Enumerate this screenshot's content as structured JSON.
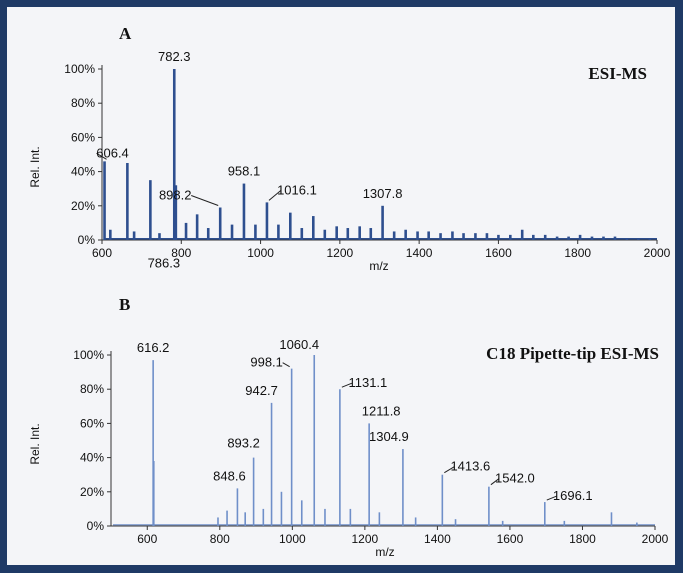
{
  "chart_data": [
    {
      "panel": "A",
      "type": "line",
      "label": "ESI-MS",
      "xlabel": "m/z",
      "ylabel": "Rel. Int.",
      "xlim": [
        600,
        2000
      ],
      "ylim": [
        0,
        100
      ],
      "xticks": [
        "600",
        "800",
        "1000",
        "1200",
        "1400",
        "1600",
        "1800",
        "2000"
      ],
      "yticks": [
        "0%",
        "20%",
        "40%",
        "60%",
        "80%",
        "100%"
      ],
      "color": "#2e4f8f",
      "peaks": [
        {
          "mz": 606.4,
          "int": 46
        },
        {
          "mz": 621,
          "int": 6
        },
        {
          "mz": 664,
          "int": 45
        },
        {
          "mz": 681,
          "int": 5
        },
        {
          "mz": 722,
          "int": 35
        },
        {
          "mz": 745,
          "int": 4
        },
        {
          "mz": 782.3,
          "int": 100
        },
        {
          "mz": 786.3,
          "int": 32
        },
        {
          "mz": 812,
          "int": 10
        },
        {
          "mz": 840,
          "int": 15
        },
        {
          "mz": 868,
          "int": 7
        },
        {
          "mz": 898.2,
          "int": 19
        },
        {
          "mz": 928,
          "int": 9
        },
        {
          "mz": 958.1,
          "int": 33
        },
        {
          "mz": 987,
          "int": 9
        },
        {
          "mz": 1016.1,
          "int": 22
        },
        {
          "mz": 1045,
          "int": 9
        },
        {
          "mz": 1075,
          "int": 16
        },
        {
          "mz": 1104,
          "int": 7
        },
        {
          "mz": 1133,
          "int": 14
        },
        {
          "mz": 1162,
          "int": 6
        },
        {
          "mz": 1192,
          "int": 8
        },
        {
          "mz": 1220,
          "int": 7
        },
        {
          "mz": 1250,
          "int": 8
        },
        {
          "mz": 1278,
          "int": 7
        },
        {
          "mz": 1307.8,
          "int": 20
        },
        {
          "mz": 1337,
          "int": 5
        },
        {
          "mz": 1366,
          "int": 6
        },
        {
          "mz": 1396,
          "int": 5
        },
        {
          "mz": 1424,
          "int": 5
        },
        {
          "mz": 1454,
          "int": 4
        },
        {
          "mz": 1484,
          "int": 5
        },
        {
          "mz": 1512,
          "int": 4
        },
        {
          "mz": 1542,
          "int": 4
        },
        {
          "mz": 1571,
          "int": 4
        },
        {
          "mz": 1600,
          "int": 3
        },
        {
          "mz": 1630,
          "int": 3
        },
        {
          "mz": 1660,
          "int": 6
        },
        {
          "mz": 1688,
          "int": 3
        },
        {
          "mz": 1718,
          "int": 3
        },
        {
          "mz": 1748,
          "int": 2
        },
        {
          "mz": 1777,
          "int": 2
        },
        {
          "mz": 1806,
          "int": 3
        },
        {
          "mz": 1836,
          "int": 2
        },
        {
          "mz": 1865,
          "int": 2
        },
        {
          "mz": 1894,
          "int": 2
        },
        {
          "mz": 1924,
          "int": 1
        },
        {
          "mz": 1953,
          "int": 1
        },
        {
          "mz": 1982,
          "int": 1
        }
      ],
      "annotations": [
        {
          "text": "606.4",
          "mz": 606.4,
          "int": 46
        },
        {
          "text": "782.3",
          "mz": 782.3,
          "int": 100
        },
        {
          "text": "786.3",
          "mz": 786.3,
          "int": 32
        },
        {
          "text": "898.2",
          "mz": 898.2,
          "int": 19
        },
        {
          "text": "958.1",
          "mz": 958.1,
          "int": 33
        },
        {
          "text": "1016.1",
          "mz": 1016.1,
          "int": 22
        },
        {
          "text": "1307.8",
          "mz": 1307.8,
          "int": 20
        }
      ]
    },
    {
      "panel": "B",
      "type": "line",
      "label": "C18 Pipette-tip ESI-MS",
      "xlabel": "m/z",
      "ylabel": "Rel. Int.",
      "xlim": [
        500,
        2000
      ],
      "ylim": [
        0,
        100
      ],
      "xticks": [
        "600",
        "800",
        "1000",
        "1200",
        "1400",
        "1600",
        "1800",
        "2000"
      ],
      "yticks": [
        "0%",
        "20%",
        "40%",
        "60%",
        "80%",
        "100%"
      ],
      "color": "#6f8fc9",
      "peaks": [
        {
          "mz": 616.2,
          "int": 97
        },
        {
          "mz": 618,
          "int": 38
        },
        {
          "mz": 795,
          "int": 5
        },
        {
          "mz": 820,
          "int": 9
        },
        {
          "mz": 848.6,
          "int": 22
        },
        {
          "mz": 870,
          "int": 8
        },
        {
          "mz": 893.2,
          "int": 40
        },
        {
          "mz": 920,
          "int": 10
        },
        {
          "mz": 942.7,
          "int": 72
        },
        {
          "mz": 970,
          "int": 20
        },
        {
          "mz": 998.1,
          "int": 92
        },
        {
          "mz": 1026,
          "int": 15
        },
        {
          "mz": 1060.4,
          "int": 100
        },
        {
          "mz": 1090,
          "int": 10
        },
        {
          "mz": 1131.1,
          "int": 80
        },
        {
          "mz": 1160,
          "int": 10
        },
        {
          "mz": 1211.8,
          "int": 60
        },
        {
          "mz": 1240,
          "int": 8
        },
        {
          "mz": 1304.9,
          "int": 45
        },
        {
          "mz": 1340,
          "int": 5
        },
        {
          "mz": 1413.6,
          "int": 30
        },
        {
          "mz": 1450,
          "int": 4
        },
        {
          "mz": 1542.0,
          "int": 23
        },
        {
          "mz": 1580,
          "int": 3
        },
        {
          "mz": 1696.1,
          "int": 14
        },
        {
          "mz": 1750,
          "int": 3
        },
        {
          "mz": 1880,
          "int": 8
        },
        {
          "mz": 1950,
          "int": 2
        }
      ],
      "annotations": [
        {
          "text": "616.2",
          "mz": 616.2,
          "int": 97
        },
        {
          "text": "848.6",
          "mz": 848.6,
          "int": 22
        },
        {
          "text": "893.2",
          "mz": 893.2,
          "int": 40
        },
        {
          "text": "942.7",
          "mz": 942.7,
          "int": 72
        },
        {
          "text": "998.1",
          "mz": 998.1,
          "int": 92
        },
        {
          "text": "1060.4",
          "mz": 1060.4,
          "int": 100
        },
        {
          "text": "1131.1",
          "mz": 1131.1,
          "int": 80
        },
        {
          "text": "1211.8",
          "mz": 1211.8,
          "int": 60
        },
        {
          "text": "1304.9",
          "mz": 1304.9,
          "int": 45
        },
        {
          "text": "1413.6",
          "mz": 1413.6,
          "int": 30
        },
        {
          "text": "1542.0",
          "mz": 1542.0,
          "int": 23
        },
        {
          "text": "1696.1",
          "mz": 1696.1,
          "int": 14
        }
      ]
    }
  ]
}
